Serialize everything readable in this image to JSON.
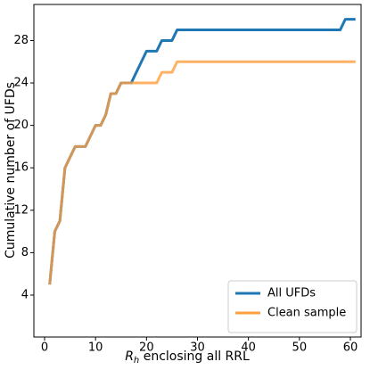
{
  "chart_data": {
    "type": "line",
    "xlabel": {
      "main": "R",
      "sub": "h",
      "rest": " enclosing all RRL"
    },
    "ylabel": "Cumulative number of UFDs",
    "x": [
      1,
      2,
      3,
      4,
      5,
      6,
      8,
      9,
      10,
      11,
      12,
      13,
      14,
      15,
      17,
      18,
      19,
      20,
      21,
      22,
      23,
      24,
      25,
      26,
      58,
      59,
      61
    ],
    "series": [
      {
        "name": "All UFDs",
        "color": "#1f77b4",
        "values": [
          5,
          10,
          11,
          16,
          17,
          18,
          18,
          19,
          20,
          20,
          21,
          23,
          23,
          24,
          24,
          25,
          26,
          27,
          27,
          27,
          28,
          28,
          28,
          29,
          29,
          30,
          30
        ]
      },
      {
        "name": "Clean sample",
        "color": "#ff9f40",
        "values": [
          5,
          10,
          11,
          16,
          17,
          18,
          18,
          19,
          20,
          20,
          21,
          23,
          23,
          24,
          24,
          24,
          24,
          24,
          24,
          24,
          25,
          25,
          25,
          26,
          26,
          26,
          26
        ]
      }
    ],
    "xlim": [
      -2.1,
      62.1
    ],
    "xticks": [
      0,
      10,
      20,
      30,
      40,
      50,
      60
    ],
    "ylim": [
      0.05,
      31.4
    ],
    "yticks": [
      4,
      8,
      12,
      16,
      20,
      24,
      28
    ],
    "legend": "lower right"
  }
}
